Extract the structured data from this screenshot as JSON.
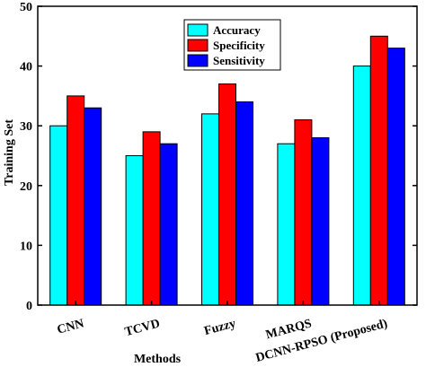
{
  "chart_data": {
    "type": "bar",
    "title": "",
    "xlabel": "Methods",
    "ylabel": "Training Set",
    "ylim": [
      0,
      50
    ],
    "yticks": [
      0,
      10,
      20,
      30,
      40,
      50
    ],
    "categories": [
      "CNN",
      "TCVD",
      "Fuzzy",
      "MARQS",
      "DCNN-RPSO (Proposed)"
    ],
    "series": [
      {
        "name": "Accuracy",
        "color": "#00ffff",
        "values": [
          30,
          25,
          32,
          27,
          40
        ]
      },
      {
        "name": "Specificity",
        "color": "#ff0000",
        "values": [
          35,
          29,
          37,
          31,
          45
        ]
      },
      {
        "name": "Sensitivity",
        "color": "#0000ff",
        "values": [
          33,
          27,
          34,
          28,
          43
        ]
      }
    ],
    "grid": false,
    "legend_position": "top-center"
  }
}
